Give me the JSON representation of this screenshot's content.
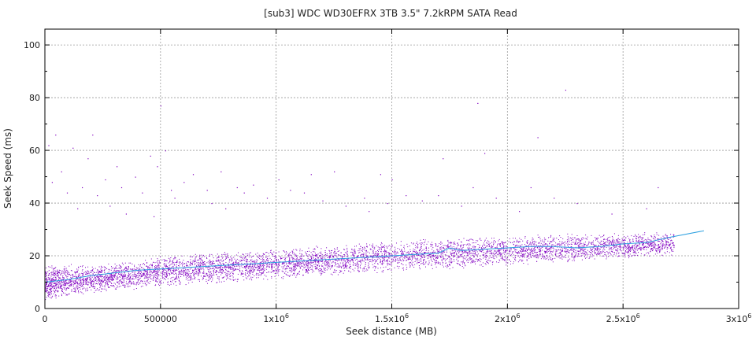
{
  "chart_data": {
    "type": "scatter",
    "title": "[sub3] WDC WD30EFRX 3TB 3.5\" 7.2kRPM SATA Read",
    "xlabel": "Seek distance (MB)",
    "ylabel": "Seek Speed (ms)",
    "xlim": [
      0,
      3000000
    ],
    "ylim": [
      0,
      106
    ],
    "grid": true,
    "x_ticks": [
      {
        "value": 0,
        "base": "0",
        "exp": ""
      },
      {
        "value": 500000,
        "base": "500000",
        "exp": ""
      },
      {
        "value": 1000000,
        "base": "1x10",
        "exp": "6"
      },
      {
        "value": 1500000,
        "base": "1.5x10",
        "exp": "6"
      },
      {
        "value": 2000000,
        "base": "2x10",
        "exp": "6"
      },
      {
        "value": 2500000,
        "base": "2.5x10",
        "exp": "6"
      },
      {
        "value": 3000000,
        "base": "3x10",
        "exp": "6"
      }
    ],
    "y_ticks": [
      {
        "value": 0,
        "label": "0"
      },
      {
        "value": 20,
        "label": "20"
      },
      {
        "value": 40,
        "label": "40"
      },
      {
        "value": 60,
        "label": "60"
      },
      {
        "value": 80,
        "label": "80"
      },
      {
        "value": 100,
        "label": "100"
      }
    ],
    "series": [
      {
        "kind": "scatter",
        "color": "#8000c0",
        "approx_point_count": 6000,
        "band": {
          "x": [
            0,
            250000,
            500000,
            1000000,
            1500000,
            2000000,
            2500000,
            2720000
          ],
          "y_low": [
            3,
            6,
            8,
            11,
            14,
            16,
            19,
            20
          ],
          "y_high": [
            17,
            17,
            20,
            23,
            26,
            28,
            29,
            29
          ]
        },
        "outliers": [
          [
            15000,
            62
          ],
          [
            30000,
            48
          ],
          [
            45000,
            66
          ],
          [
            70000,
            52
          ],
          [
            95000,
            44
          ],
          [
            120000,
            61
          ],
          [
            140000,
            38
          ],
          [
            160000,
            46
          ],
          [
            185000,
            57
          ],
          [
            205000,
            66
          ],
          [
            225000,
            43
          ],
          [
            260000,
            49
          ],
          [
            280000,
            39
          ],
          [
            310000,
            54
          ],
          [
            330000,
            46
          ],
          [
            350000,
            36
          ],
          [
            390000,
            50
          ],
          [
            420000,
            44
          ],
          [
            455000,
            58
          ],
          [
            470000,
            35
          ],
          [
            485000,
            54
          ],
          [
            500000,
            77
          ],
          [
            520000,
            60
          ],
          [
            545000,
            45
          ],
          [
            560000,
            42
          ],
          [
            600000,
            48
          ],
          [
            640000,
            51
          ],
          [
            700000,
            45
          ],
          [
            720000,
            40
          ],
          [
            760000,
            52
          ],
          [
            780000,
            38
          ],
          [
            830000,
            46
          ],
          [
            860000,
            44
          ],
          [
            900000,
            47
          ],
          [
            960000,
            42
          ],
          [
            1010000,
            49
          ],
          [
            1060000,
            45
          ],
          [
            1120000,
            44
          ],
          [
            1150000,
            51
          ],
          [
            1200000,
            41
          ],
          [
            1250000,
            52
          ],
          [
            1300000,
            39
          ],
          [
            1380000,
            42
          ],
          [
            1400000,
            37
          ],
          [
            1450000,
            51
          ],
          [
            1480000,
            40
          ],
          [
            1500000,
            49
          ],
          [
            1560000,
            43
          ],
          [
            1630000,
            41
          ],
          [
            1700000,
            43
          ],
          [
            1720000,
            57
          ],
          [
            1800000,
            39
          ],
          [
            1850000,
            46
          ],
          [
            1870000,
            78
          ],
          [
            1900000,
            59
          ],
          [
            1950000,
            42
          ],
          [
            2050000,
            37
          ],
          [
            2100000,
            46
          ],
          [
            2130000,
            65
          ],
          [
            2200000,
            42
          ],
          [
            2250000,
            83
          ],
          [
            2300000,
            40
          ],
          [
            2450000,
            36
          ],
          [
            2600000,
            38
          ],
          [
            2650000,
            46
          ]
        ]
      },
      {
        "kind": "line",
        "color": "#2ca0e0",
        "x": [
          0,
          100000,
          200000,
          300000,
          400000,
          500000,
          600000,
          700000,
          800000,
          900000,
          1000000,
          1100000,
          1200000,
          1300000,
          1400000,
          1500000,
          1600000,
          1700000,
          1750000,
          1800000,
          1900000,
          2000000,
          2100000,
          2200000,
          2300000,
          2400000,
          2500000,
          2600000,
          2700000,
          2850000
        ],
        "y": [
          10,
          11,
          12.5,
          13.5,
          14.5,
          15,
          15.5,
          16,
          16.5,
          17,
          17.5,
          18,
          18.5,
          19,
          19.5,
          20,
          20.5,
          21,
          23,
          22,
          22.5,
          23,
          23.5,
          23.5,
          23,
          23.5,
          24.5,
          25,
          27,
          29.5
        ]
      }
    ]
  }
}
